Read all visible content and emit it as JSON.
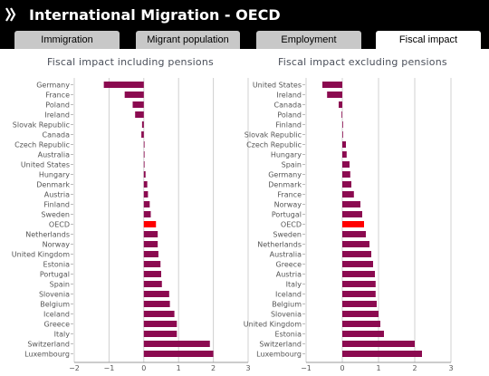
{
  "header": {
    "title": "International Migration - OECD",
    "icon": "double-chevron-right-icon"
  },
  "tabs": [
    {
      "label": "Immigration",
      "active": false
    },
    {
      "label": "Migrant population",
      "active": false
    },
    {
      "label": "Employment",
      "active": false
    },
    {
      "label": "Fiscal impact",
      "active": true
    }
  ],
  "colors": {
    "bar": "#8b0a50",
    "highlight": "#ff0000",
    "header": "#000000"
  },
  "chart_data": [
    {
      "type": "bar",
      "orientation": "horizontal",
      "title": "Fiscal impact including pensions",
      "xlim": [
        -2,
        3
      ],
      "xticks": [
        -2,
        -1,
        0,
        1,
        2,
        3
      ],
      "grid": true,
      "highlight": "OECD",
      "categories": [
        "Germany",
        "France",
        "Poland",
        "Ireland",
        "Slovak Republic",
        "Canada",
        "Czech Republic",
        "Australia",
        "United States",
        "Hungary",
        "Denmark",
        "Austria",
        "Finland",
        "Sweden",
        "OECD",
        "Netherlands",
        "Norway",
        "United Kingdom",
        "Estonia",
        "Portugal",
        "Spain",
        "Slovenia",
        "Belgium",
        "Iceland",
        "Greece",
        "Italy",
        "Switzerland",
        "Luxembourg"
      ],
      "values": [
        -1.15,
        -0.55,
        -0.32,
        -0.25,
        -0.05,
        -0.07,
        0.0,
        0.0,
        0.02,
        0.05,
        0.1,
        0.12,
        0.17,
        0.2,
        0.35,
        0.4,
        0.4,
        0.42,
        0.48,
        0.5,
        0.52,
        0.73,
        0.75,
        0.88,
        0.95,
        0.95,
        1.9,
        2.0
      ]
    },
    {
      "type": "bar",
      "orientation": "horizontal",
      "title": "Fiscal impact excluding pensions",
      "xlim": [
        -1,
        3
      ],
      "xticks": [
        -1,
        0,
        1,
        2,
        3
      ],
      "grid": true,
      "highlight": "OECD",
      "categories": [
        "United States",
        "Ireland",
        "Canada",
        "Poland",
        "Finland",
        "Slovak Republic",
        "Czech Republic",
        "Hungary",
        "Spain",
        "Germany",
        "Denmark",
        "France",
        "Norway",
        "Portugal",
        "OECD",
        "Sweden",
        "Netherlands",
        "Australia",
        "Greece",
        "Austria",
        "Italy",
        "Iceland",
        "Belgium",
        "Slovenia",
        "United Kingdom",
        "Estonia",
        "Switzerland",
        "Luxembourg"
      ],
      "values": [
        -0.55,
        -0.42,
        -0.1,
        -0.02,
        0.02,
        0.02,
        0.1,
        0.12,
        0.2,
        0.22,
        0.25,
        0.32,
        0.5,
        0.55,
        0.6,
        0.65,
        0.75,
        0.8,
        0.85,
        0.9,
        0.92,
        0.92,
        0.95,
        1.0,
        1.05,
        1.15,
        2.0,
        2.2
      ]
    }
  ]
}
